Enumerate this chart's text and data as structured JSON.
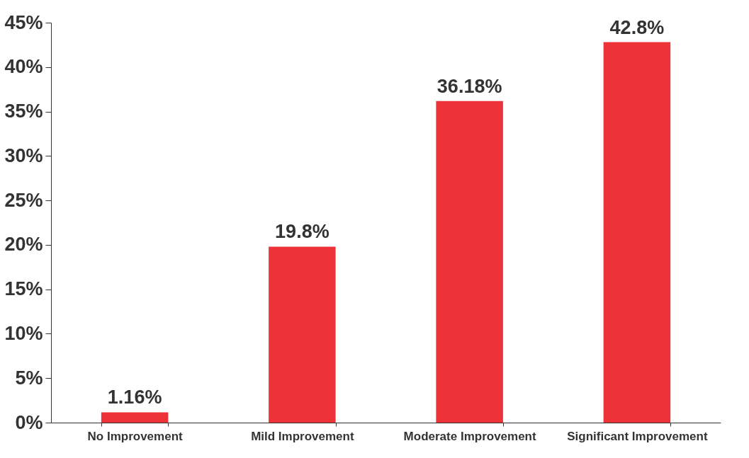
{
  "chart_data": {
    "type": "bar",
    "categories": [
      "No Improvement",
      "Mild Improvement",
      "Moderate Improvement",
      "Significant Improvement"
    ],
    "values": [
      1.16,
      19.8,
      36.18,
      42.8
    ],
    "value_labels": [
      "1.16%",
      "19.8%",
      "36.18%",
      "42.8%"
    ],
    "color": "#ee3338",
    "ylim": [
      0,
      45
    ],
    "yticks": [
      {
        "value": 0,
        "label": "0%"
      },
      {
        "value": 5,
        "label": "5%"
      },
      {
        "value": 10,
        "label": "10%"
      },
      {
        "value": 15,
        "label": "15%"
      },
      {
        "value": 20,
        "label": "20%"
      },
      {
        "value": 25,
        "label": "25%"
      },
      {
        "value": 30,
        "label": "30%"
      },
      {
        "value": 35,
        "label": "35%"
      },
      {
        "value": 40,
        "label": "40%"
      },
      {
        "value": 45,
        "label": "45%"
      }
    ],
    "grid": false
  }
}
